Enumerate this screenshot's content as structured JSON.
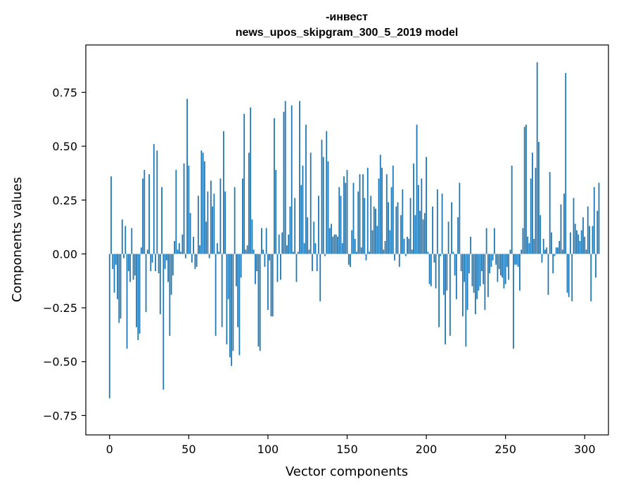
{
  "chart_data": {
    "type": "bar",
    "title": "-инвест",
    "subtitle": "news_upos_skipgram_300_5_2019 model",
    "xlabel": "Vector components",
    "ylabel": "Components values",
    "xlim": [
      -15,
      315
    ],
    "ylim": [
      -0.84,
      0.97
    ],
    "x_ticks": [
      0,
      50,
      100,
      150,
      200,
      250,
      300
    ],
    "x_tick_labels": [
      "0",
      "50",
      "100",
      "150",
      "200",
      "250",
      "300"
    ],
    "y_ticks": [
      -0.75,
      -0.5,
      -0.25,
      0.0,
      0.25,
      0.5,
      0.75
    ],
    "y_tick_labels": [
      "−0.75",
      "−0.50",
      "−0.25",
      "0.00",
      "0.25",
      "0.50",
      "0.75"
    ],
    "bar_color": "#1f77b4",
    "grid": false,
    "values": [
      -0.67,
      0.36,
      -0.07,
      -0.18,
      -0.05,
      -0.21,
      -0.32,
      -0.3,
      0.16,
      -0.02,
      0.13,
      -0.44,
      -0.08,
      -0.13,
      0.12,
      -0.12,
      -0.1,
      -0.34,
      -0.4,
      -0.37,
      0.03,
      0.35,
      0.39,
      -0.27,
      0.02,
      0.37,
      -0.08,
      -0.04,
      0.51,
      -0.08,
      0.48,
      -0.09,
      -0.28,
      0.31,
      -0.63,
      -0.07,
      -0.03,
      -0.13,
      -0.38,
      -0.19,
      -0.1,
      0.06,
      0.39,
      0.02,
      0.05,
      0.01,
      0.09,
      0.42,
      -0.02,
      0.72,
      0.41,
      0.19,
      -0.04,
      0.08,
      -0.07,
      -0.06,
      0.27,
      0.04,
      0.48,
      0.47,
      0.43,
      0.15,
      0.29,
      -0.02,
      0.34,
      0.22,
      0.28,
      -0.38,
      0.05,
      0.01,
      0.35,
      -0.34,
      0.57,
      0.29,
      -0.42,
      -0.21,
      -0.48,
      -0.52,
      -0.45,
      0.31,
      -0.15,
      -0.34,
      -0.47,
      -0.11,
      0.35,
      0.65,
      0.02,
      0.04,
      0.47,
      0.68,
      0.16,
      0.02,
      -0.14,
      -0.08,
      -0.43,
      -0.45,
      0.12,
      0.02,
      -0.06,
      0.12,
      -0.26,
      -0.03,
      -0.29,
      -0.29,
      0.63,
      0.39,
      -0.13,
      0.09,
      -0.12,
      0.1,
      0.66,
      0.71,
      0.04,
      0.09,
      0.22,
      0.69,
      0.01,
      0.26,
      -0.13,
      0.01,
      0.71,
      0.32,
      0.41,
      0.05,
      0.6,
      0.17,
      0.02,
      0.47,
      -0.08,
      0.15,
      0.05,
      -0.08,
      0.27,
      -0.22,
      0.53,
      0.45,
      -0.01,
      0.57,
      0.43,
      0.12,
      0.14,
      0.08,
      0.09,
      0.09,
      0.08,
      0.31,
      0.27,
      0.05,
      0.36,
      0.33,
      0.39,
      -0.05,
      -0.06,
      0.11,
      0.33,
      0.07,
      0.01,
      0.29,
      0.37,
      0.03,
      0.37,
      0.26,
      -0.03,
      0.4,
      0.01,
      0.27,
      0.11,
      0.22,
      0.21,
      0.13,
      0.35,
      0.46,
      0.4,
      0.02,
      0.06,
      0.37,
      0.24,
      0.11,
      0.31,
      0.41,
      -0.03,
      0.22,
      0.24,
      -0.06,
      0.18,
      0.3,
      0.07,
      -0.01,
      0.08,
      0.07,
      0.26,
      0.02,
      0.42,
      0.18,
      0.6,
      0.32,
      0.2,
      0.35,
      0.16,
      0.19,
      0.45,
      0.01,
      -0.14,
      -0.15,
      0.22,
      -0.04,
      -0.16,
      0.3,
      -0.34,
      -0.01,
      0.28,
      -0.19,
      -0.42,
      -0.17,
      0.15,
      -0.38,
      0.24,
      0.01,
      -0.1,
      -0.21,
      0.17,
      0.33,
      -0.08,
      -0.29,
      -0.13,
      -0.43,
      -0.26,
      -0.09,
      0.08,
      -0.15,
      -0.18,
      -0.28,
      -0.21,
      -0.17,
      -0.15,
      -0.08,
      -0.14,
      -0.26,
      0.12,
      -0.2,
      -0.09,
      -0.06,
      -0.03,
      0.12,
      -0.05,
      -0.13,
      -0.07,
      -0.1,
      -0.11,
      -0.16,
      -0.14,
      -0.06,
      -0.12,
      0.02,
      0.41,
      -0.44,
      -0.05,
      -0.05,
      -0.06,
      -0.17,
      0.02,
      0.12,
      0.59,
      0.6,
      0.08,
      0.05,
      0.35,
      0.47,
      0.07,
      0.4,
      0.89,
      0.52,
      0.18,
      -0.04,
      0.07,
      0.02,
      0.03,
      -0.19,
      0.38,
      0.1,
      -0.09,
      -0.01,
      0.03,
      0.03,
      0.06,
      0.23,
      0.02,
      0.28,
      0.84,
      -0.18,
      -0.2,
      0.1,
      -0.22,
      0.26,
      0.14,
      0.11,
      0.09,
      0.06,
      0.11,
      0.17,
      0.08,
      0.02,
      0.22,
      0.13,
      -0.22,
      0.13,
      0.31,
      -0.11,
      0.2,
      0.33
    ]
  }
}
